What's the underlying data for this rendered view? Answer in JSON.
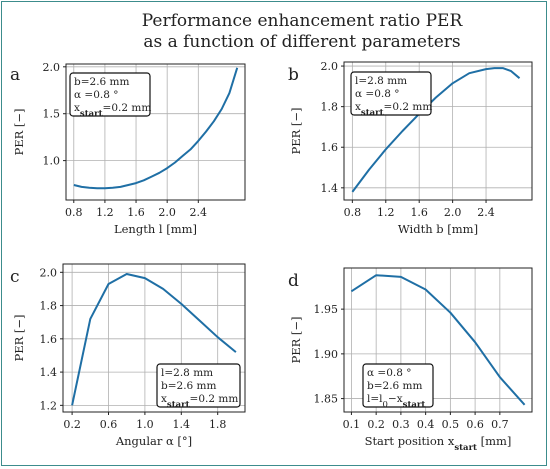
{
  "title_line1": "Performance enhancement ratio PER",
  "title_line2": "as a function of different parameters",
  "colors": {
    "line": "#1f6fa5",
    "frame": "#3c8c8c",
    "grid": "#b0b0b0"
  },
  "chart_data": [
    {
      "type": "line",
      "letter": "a",
      "xlabel": "Length l [mm]",
      "ylabel": "PER  [−]",
      "xlim": [
        0.7,
        3.0
      ],
      "ylim": [
        0.58,
        2.03
      ],
      "xticks": [
        "0.8",
        "1.2",
        "1.6",
        "2.0",
        "2.4"
      ],
      "yticks": [
        "1.0",
        "1.5",
        "2.0"
      ],
      "grid": true,
      "annotation": [
        "b=2.6 mm",
        "α =0.8 °",
        "xstart=0.2 mm"
      ],
      "annotation_placement": "top-left",
      "x": [
        0.8,
        0.9,
        1.0,
        1.1,
        1.2,
        1.3,
        1.4,
        1.5,
        1.6,
        1.7,
        1.8,
        1.9,
        2.0,
        2.1,
        2.2,
        2.3,
        2.4,
        2.5,
        2.6,
        2.7,
        2.8,
        2.9
      ],
      "y": [
        0.74,
        0.72,
        0.71,
        0.705,
        0.705,
        0.71,
        0.72,
        0.74,
        0.76,
        0.79,
        0.83,
        0.87,
        0.92,
        0.98,
        1.05,
        1.12,
        1.21,
        1.31,
        1.42,
        1.55,
        1.72,
        1.99
      ]
    },
    {
      "type": "line",
      "letter": "b",
      "xlabel": "Width b [mm]",
      "ylabel": "PER  [−]",
      "xlim": [
        0.7,
        2.95
      ],
      "ylim": [
        1.34,
        2.02
      ],
      "xticks": [
        "0.8",
        "1.2",
        "1.6",
        "2.0",
        "2.4"
      ],
      "yticks": [
        "1.4",
        "1.6",
        "1.8",
        "2.0"
      ],
      "grid": true,
      "annotation": [
        "l=2.8 mm",
        "α =0.8 °",
        "xstart=0.2 mm"
      ],
      "annotation_placement": "top-left",
      "x": [
        0.8,
        1.0,
        1.2,
        1.4,
        1.6,
        1.8,
        2.0,
        2.2,
        2.4,
        2.5,
        2.6,
        2.7,
        2.8
      ],
      "y": [
        1.38,
        1.49,
        1.59,
        1.68,
        1.765,
        1.845,
        1.915,
        1.965,
        1.985,
        1.99,
        1.99,
        1.975,
        1.94
      ]
    },
    {
      "type": "line",
      "letter": "c",
      "xlabel": "Angular α [°]",
      "ylabel": "PER  [−]",
      "xlim": [
        0.1,
        2.1
      ],
      "ylim": [
        1.16,
        2.05
      ],
      "xticks": [
        "0.2",
        "0.6",
        "1.0",
        "1.4",
        "1.8"
      ],
      "yticks": [
        "1.2",
        "1.4",
        "1.6",
        "1.8",
        "2.0"
      ],
      "grid": true,
      "annotation": [
        "l=2.8 mm",
        "b=2.6 mm",
        "xstart=0.2 mm"
      ],
      "annotation_placement": "bottom-right",
      "x": [
        0.2,
        0.4,
        0.6,
        0.8,
        1.0,
        1.2,
        1.4,
        1.6,
        1.8,
        2.0
      ],
      "y": [
        1.2,
        1.72,
        1.93,
        1.99,
        1.965,
        1.9,
        1.81,
        1.71,
        1.61,
        1.52
      ]
    },
    {
      "type": "line",
      "letter": "d",
      "xlabel": "Start position xstart [mm]",
      "ylabel": "PER  [−]",
      "xlim": [
        0.07,
        0.83
      ],
      "ylim": [
        1.835,
        1.996
      ],
      "xticks": [
        "0.1",
        "0.2",
        "0.3",
        "0.4",
        "0.5",
        "0.6",
        "0.7"
      ],
      "yticks": [
        "1.85",
        "1.90",
        "1.95"
      ],
      "grid": true,
      "annotation": [
        "α =0.8 °",
        "b=2.6 mm",
        "l=l0−xstart"
      ],
      "annotation_placement": "bottom-left",
      "x": [
        0.1,
        0.2,
        0.3,
        0.4,
        0.5,
        0.6,
        0.7,
        0.8
      ],
      "y": [
        1.97,
        1.988,
        1.986,
        1.972,
        1.946,
        1.913,
        1.874,
        1.843
      ]
    }
  ]
}
